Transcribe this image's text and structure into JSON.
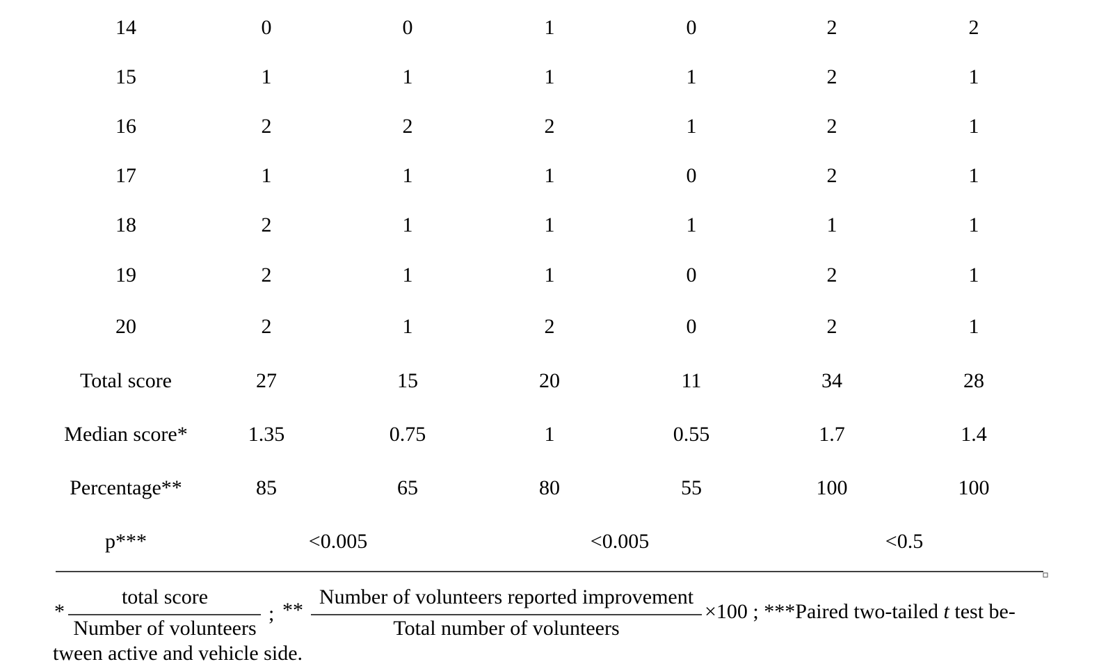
{
  "table": {
    "rows": [
      [
        14,
        0,
        0,
        1,
        0,
        2,
        2
      ],
      [
        15,
        1,
        1,
        1,
        1,
        2,
        1
      ],
      [
        16,
        2,
        2,
        2,
        1,
        2,
        1
      ],
      [
        17,
        1,
        1,
        1,
        0,
        2,
        1
      ],
      [
        18,
        2,
        1,
        1,
        1,
        1,
        1
      ],
      [
        19,
        2,
        1,
        1,
        0,
        2,
        1
      ],
      [
        20,
        2,
        1,
        2,
        0,
        2,
        1
      ],
      [
        "Total score",
        27,
        15,
        20,
        11,
        34,
        28
      ],
      [
        "Median score*",
        1.35,
        0.75,
        1,
        0.55,
        1.7,
        1.4
      ],
      [
        "Percentage**",
        85,
        65,
        80,
        55,
        100,
        100
      ]
    ],
    "p_row": {
      "label": "p***",
      "values": [
        "<0.005",
        "<0.005",
        "<0.5"
      ]
    }
  },
  "footnote": {
    "marker1": "*",
    "fraction1": {
      "numerator": "total score",
      "denominator": "Number of volunteers"
    },
    "separator1": ";",
    "marker2": "**",
    "fraction2": {
      "numerator": "Number of volunteers reported improvement",
      "denominator": "Total number of volunteers"
    },
    "multiplier": "×100",
    "separator2": ";",
    "note3_start": "***Paired two-tailed",
    "note3_italic": "t",
    "note3_end": "test be-",
    "note3_continued": "tween active and vehicle side."
  }
}
